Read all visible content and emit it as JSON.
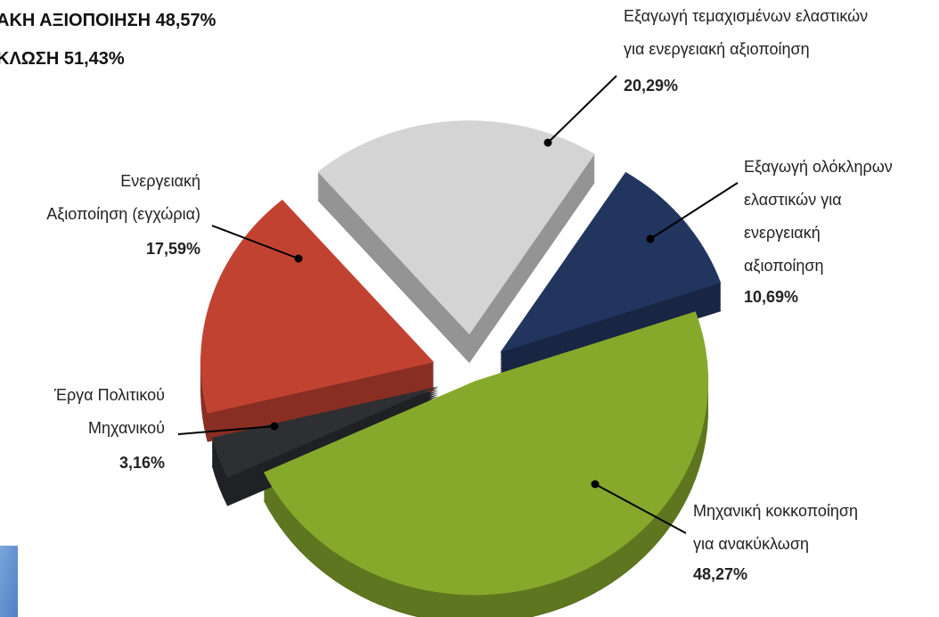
{
  "chart_data": {
    "type": "pie",
    "annotations": [
      "ΑΚΗ ΑΞΙΟΠΟΙΗΣΗ 48,57%",
      "ΚΛΩΣΗ 51,43%"
    ],
    "categories": [
      "Μηχανική κοκκοποίηση για ανακύκλωση",
      "Έργα Πολιτικού Μηχανικού",
      "Ενεργειακή Αξιοποίηση (εγχώρια)",
      "Εξαγωγή τεμαχισμένων ελαστικών για ενεργειακή αξιοποίηση",
      "Εξαγωγή ολόκληρων ελαστικών για ενεργειακή αξιοποίηση"
    ],
    "values": [
      48.27,
      3.16,
      17.59,
      20.29,
      10.69
    ],
    "value_labels": [
      "48,27%",
      "3,16%",
      "17,59%",
      "20,29%",
      "10,69%"
    ],
    "colors": [
      "#86a92c",
      "#2d2f33",
      "#c24232",
      "#d4d4d4",
      "#22355f"
    ]
  }
}
